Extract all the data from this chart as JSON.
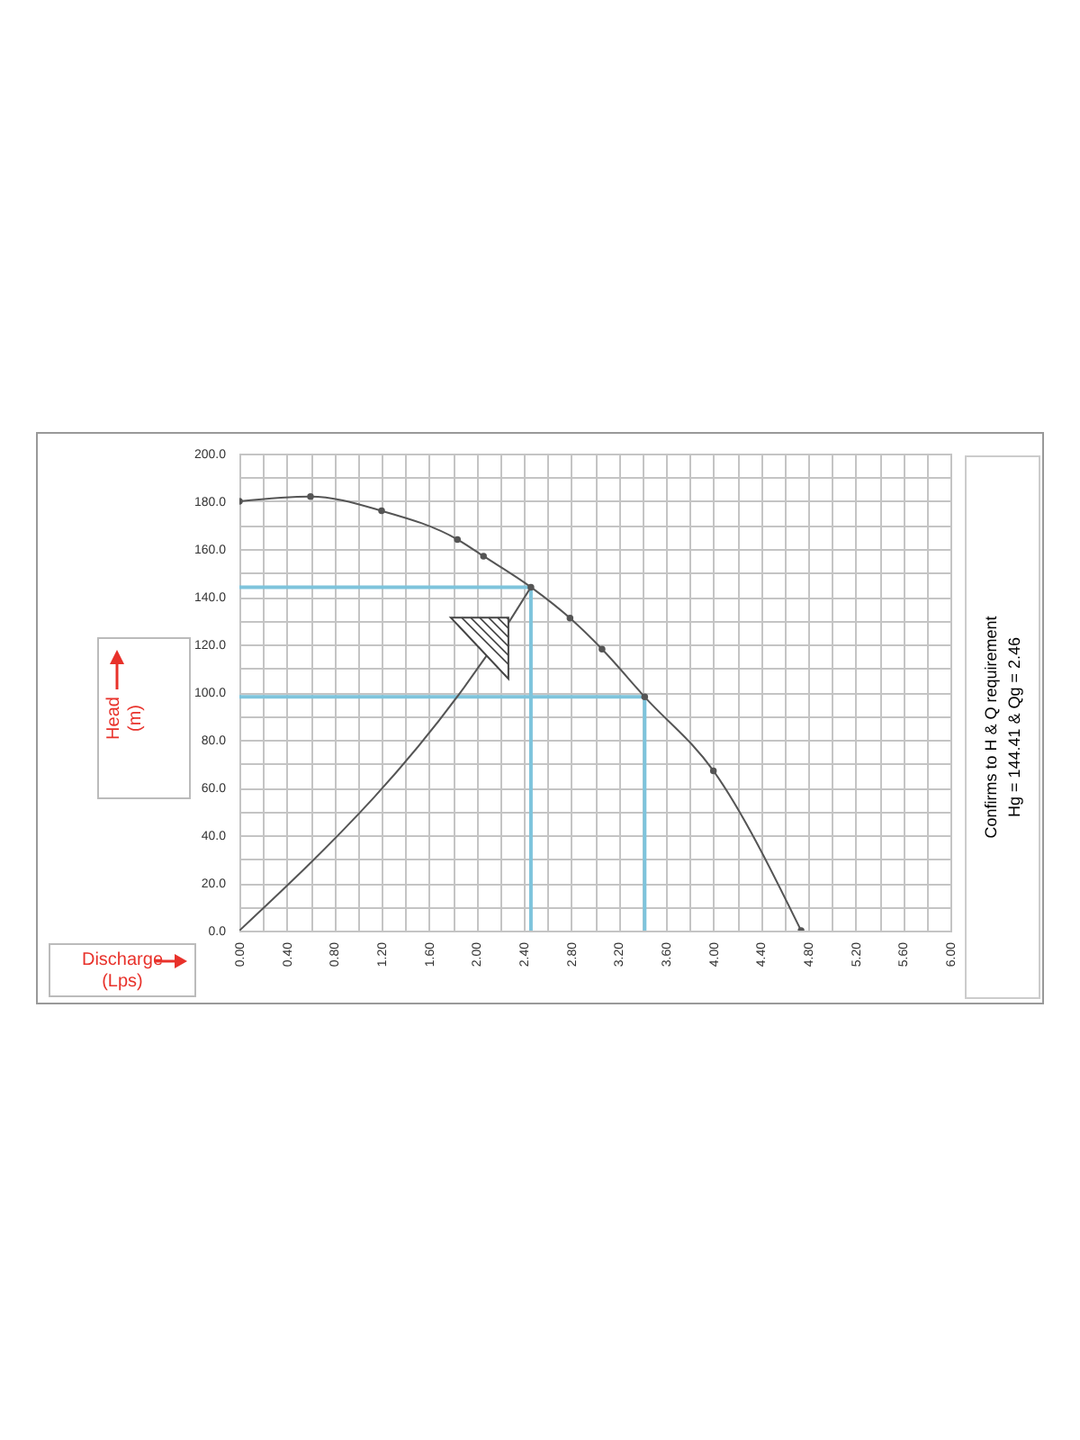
{
  "chart_data": {
    "type": "line",
    "xlabel": "Discharge\n(Lps)",
    "ylabel": "Head\n(m)",
    "annotations": [
      "Confirms to H & Q requirement",
      "Hg = 144.41 & Qg = 2.46"
    ],
    "xlim": [
      0,
      6
    ],
    "ylim": [
      0,
      200
    ],
    "xticks": [
      {
        "value": 0,
        "label": "0.00"
      },
      {
        "value": 0.2,
        "label": null
      },
      {
        "value": 0.4,
        "label": "0.40"
      },
      {
        "value": 0.6,
        "label": null
      },
      {
        "value": 0.8,
        "label": "0.80"
      },
      {
        "value": 1,
        "label": null
      },
      {
        "value": 1.2,
        "label": "1.20"
      },
      {
        "value": 1.4,
        "label": null
      },
      {
        "value": 1.6,
        "label": "1.60"
      },
      {
        "value": 1.8,
        "label": null
      },
      {
        "value": 2,
        "label": "2.00"
      },
      {
        "value": 2.2,
        "label": null
      },
      {
        "value": 2.4,
        "label": "2.40"
      },
      {
        "value": 2.6,
        "label": null
      },
      {
        "value": 2.8,
        "label": "2.80"
      },
      {
        "value": 3,
        "label": null
      },
      {
        "value": 3.2,
        "label": "3.20"
      },
      {
        "value": 3.4,
        "label": null
      },
      {
        "value": 3.6,
        "label": "3.60"
      },
      {
        "value": 3.8,
        "label": null
      },
      {
        "value": 4,
        "label": "4.00"
      },
      {
        "value": 4.2,
        "label": null
      },
      {
        "value": 4.4,
        "label": "4.40"
      },
      {
        "value": 4.6,
        "label": null
      },
      {
        "value": 4.8,
        "label": "4.80"
      },
      {
        "value": 5,
        "label": null
      },
      {
        "value": 5.2,
        "label": "5.20"
      },
      {
        "value": 5.4,
        "label": null
      },
      {
        "value": 5.6,
        "label": "5.60"
      },
      {
        "value": 5.8,
        "label": null
      },
      {
        "value": 6,
        "label": "6.00"
      }
    ],
    "yticks": [
      {
        "value": 0,
        "label": "0.0"
      },
      {
        "value": 10,
        "label": null
      },
      {
        "value": 20,
        "label": "20.0"
      },
      {
        "value": 30,
        "label": null
      },
      {
        "value": 40,
        "label": "40.0"
      },
      {
        "value": 50,
        "label": null
      },
      {
        "value": 60,
        "label": "60.0"
      },
      {
        "value": 70,
        "label": null
      },
      {
        "value": 80,
        "label": "80.0"
      },
      {
        "value": 90,
        "label": null
      },
      {
        "value": 100,
        "label": "100.0"
      },
      {
        "value": 110,
        "label": null
      },
      {
        "value": 120,
        "label": "120.0"
      },
      {
        "value": 130,
        "label": null
      },
      {
        "value": 140,
        "label": "140.0"
      },
      {
        "value": 150,
        "label": null
      },
      {
        "value": 160,
        "label": "160.0"
      },
      {
        "value": 170,
        "label": null
      },
      {
        "value": 180,
        "label": "180.0"
      },
      {
        "value": 190,
        "label": null
      },
      {
        "value": 200,
        "label": "200.0"
      }
    ],
    "grid": true,
    "marker": "circle",
    "series": [
      {
        "color": "#7ec4dc",
        "marker": "none",
        "x": [
          0,
          2.46,
          2.46
        ],
        "values": [
          144,
          144,
          0
        ]
      },
      {
        "color": "#7ec4dc",
        "marker": "none",
        "x": [
          0,
          3.42,
          3.42
        ],
        "values": [
          98,
          98,
          0
        ]
      },
      {
        "color": "#555555",
        "x": [
          0,
          0.6,
          1.2,
          1.84,
          2.06,
          2.46,
          2.79,
          3.06,
          3.42,
          4.0,
          4.74
        ],
        "values": [
          180,
          182,
          176,
          164,
          157,
          144,
          131,
          118,
          98,
          67,
          0
        ]
      },
      {
        "color": "#555555",
        "marker": "none",
        "x": [
          0,
          2.27,
          2.46
        ],
        "values": [
          0,
          129,
          144
        ]
      }
    ]
  }
}
